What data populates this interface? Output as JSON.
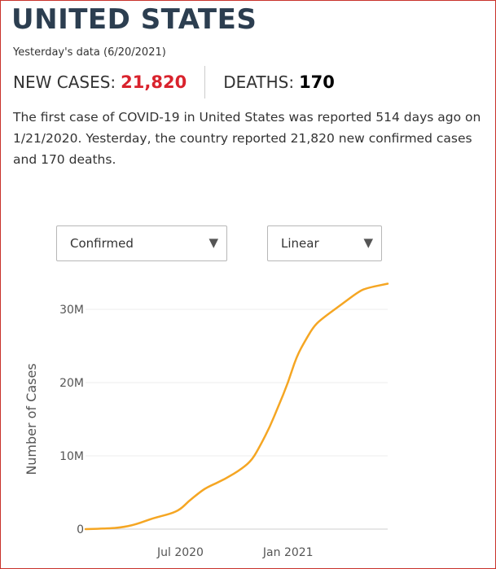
{
  "country": "UNITED STATES",
  "data_date_text": "Yesterday's data (6/20/2021)",
  "new_cases_label": "NEW CASES:",
  "new_cases_value": "21,820",
  "deaths_label": "DEATHS:",
  "deaths_value": "170",
  "description": "The first case of COVID-19 in United States was reported 514 days ago on 1/21/2020. Yesterday, the country reported 21,820 new confirmed cases and 170 deaths.",
  "metric_select": {
    "value": "Confirmed"
  },
  "scale_select": {
    "value": "Linear"
  },
  "colors": {
    "accent_red": "#d9232d",
    "line": "#f5a623",
    "title": "#2c3e50"
  },
  "chart_data": {
    "type": "line",
    "title": "",
    "xlabel": "",
    "ylabel": "Number of Cases",
    "y_scale": "linear",
    "ylim": [
      0,
      33000000
    ],
    "x_ticks": [
      "Jul 2020",
      "Jan 2021"
    ],
    "y_ticks": [
      {
        "value": 0,
        "label": "0"
      },
      {
        "value": 10000000,
        "label": "10M"
      },
      {
        "value": 20000000,
        "label": "20M"
      },
      {
        "value": 30000000,
        "label": "30M"
      }
    ],
    "grid": true,
    "series": [
      {
        "x": [
          "2020-01-21",
          "2020-03-01",
          "2020-03-20",
          "2020-04-15",
          "2020-05-15",
          "2020-06-15",
          "2020-07-01",
          "2020-07-15",
          "2020-08-01",
          "2020-08-15",
          "2020-09-15",
          "2020-10-15",
          "2020-11-01",
          "2020-11-15",
          "2020-12-01",
          "2020-12-15",
          "2021-01-01",
          "2021-01-15",
          "2021-02-01",
          "2021-02-15",
          "2021-03-01",
          "2021-04-01",
          "2021-05-01",
          "2021-05-15",
          "2021-06-20"
        ],
        "y": [
          0,
          100000,
          200000,
          600000,
          1500000,
          2100000,
          2700000,
          3800000,
          4900000,
          5700000,
          6800000,
          8300000,
          9500000,
          11500000,
          14000000,
          16700000,
          20000000,
          23500000,
          26000000,
          27800000,
          28800000,
          30600000,
          32400000,
          32900000,
          33500000
        ]
      }
    ]
  }
}
